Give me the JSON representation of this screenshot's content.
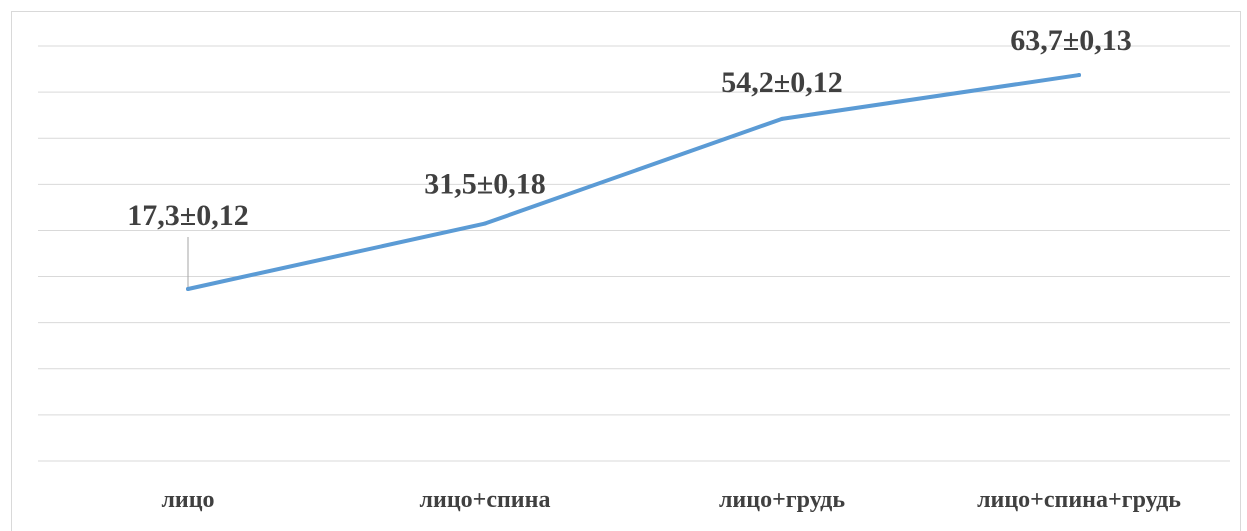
{
  "chart_data": {
    "type": "line",
    "categories": [
      "лицо",
      "лицо+спина",
      "лицо+грудь",
      "лицо+спина+грудь"
    ],
    "values": [
      17.3,
      31.5,
      54.2,
      63.7
    ],
    "data_labels": [
      "17,3±0,12",
      "31,5±0,18",
      "54,2±0,12",
      "63,7±0,13"
    ],
    "title": "",
    "xlabel": "",
    "ylabel": "",
    "ylim": [
      -20,
      70
    ],
    "gridlines": true,
    "y_axis_labels_visible": false,
    "legend": "none",
    "colors": {
      "line": "#5b9bd5",
      "grid": "#d9d9d9",
      "text": "#404040"
    }
  }
}
